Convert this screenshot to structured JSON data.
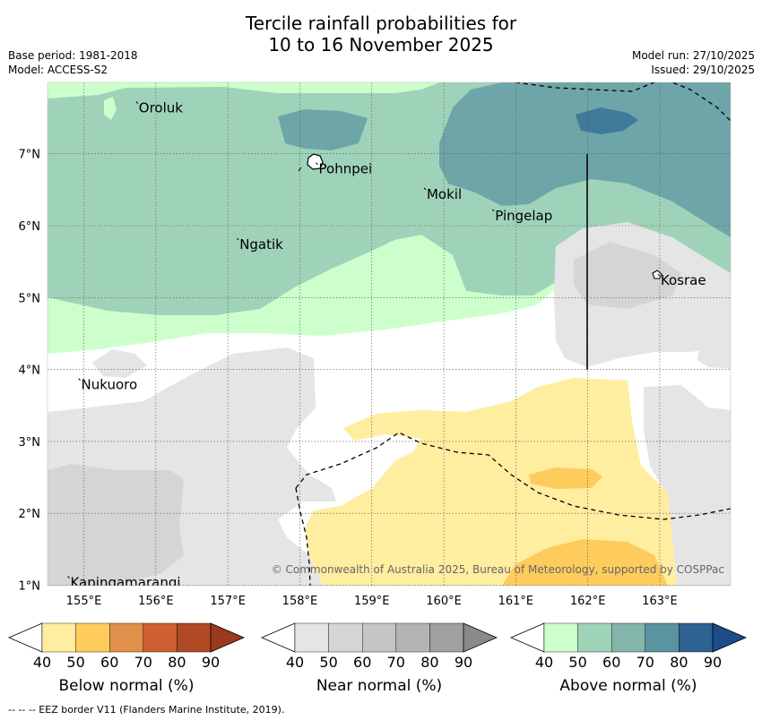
{
  "title": {
    "line1": "Tercile rainfall probabilities for",
    "line2": "10 to 16 November 2025"
  },
  "meta": {
    "base_period": "Base period: 1981-2018",
    "model": "Model: ACCESS-S2",
    "model_run": "Model run: 27/10/2025",
    "issued": "Issued: 29/10/2025"
  },
  "map": {
    "lon_ticks": [
      "155°E",
      "156°E",
      "157°E",
      "158°E",
      "159°E",
      "160°E",
      "161°E",
      "162°E",
      "163°E"
    ],
    "lat_ticks": [
      "7°N",
      "6°N",
      "5°N",
      "4°N",
      "3°N",
      "2°N",
      "1°N"
    ],
    "places": [
      {
        "name": "Oroluk",
        "lon": 155.75,
        "lat": 7.7
      },
      {
        "name": "Pohnpei",
        "lon": 158.25,
        "lat": 6.85
      },
      {
        "name": "Mokil",
        "lon": 159.75,
        "lat": 6.5
      },
      {
        "name": "Pingelap",
        "lon": 160.7,
        "lat": 6.2
      },
      {
        "name": "Ngatik",
        "lon": 157.15,
        "lat": 5.8
      },
      {
        "name": "Kosrae",
        "lon": 163.0,
        "lat": 5.3
      },
      {
        "name": "Nukuoro",
        "lon": 154.95,
        "lat": 3.85
      },
      {
        "name": "Kapingamarangi",
        "lon": 154.8,
        "lat": 1.1
      }
    ],
    "copyright": "© Commonwealth of Australia 2025, Bureau of Meteorology, supported by COSPPac"
  },
  "colorbars": [
    {
      "name": "below",
      "label": "Below normal (%)",
      "ticks": [
        "40",
        "50",
        "60",
        "70",
        "80",
        "90"
      ],
      "colors": [
        "#ffffff",
        "#ffeda0",
        "#fecc5c",
        "#e0904a",
        "#cd5f30",
        "#b04a25",
        "#9a3a1c"
      ]
    },
    {
      "name": "near",
      "label": "Near normal (%)",
      "ticks": [
        "40",
        "50",
        "60",
        "70",
        "80",
        "90"
      ],
      "colors": [
        "#ffffff",
        "#e5e5e5",
        "#d5d5d5",
        "#c5c5c5",
        "#b3b3b3",
        "#a0a0a0",
        "#8a8a8a"
      ]
    },
    {
      "name": "above",
      "label": "Above normal (%)",
      "ticks": [
        "40",
        "50",
        "60",
        "70",
        "80",
        "90"
      ],
      "colors": [
        "#ffffff",
        "#ccffcc",
        "#9fd3b9",
        "#84b5aa",
        "#5b93a0",
        "#2f6292",
        "#1b4c85"
      ]
    }
  ],
  "footer": "--  --  -- EEZ border V11 (Flanders Marine Institute, 2019)."
}
